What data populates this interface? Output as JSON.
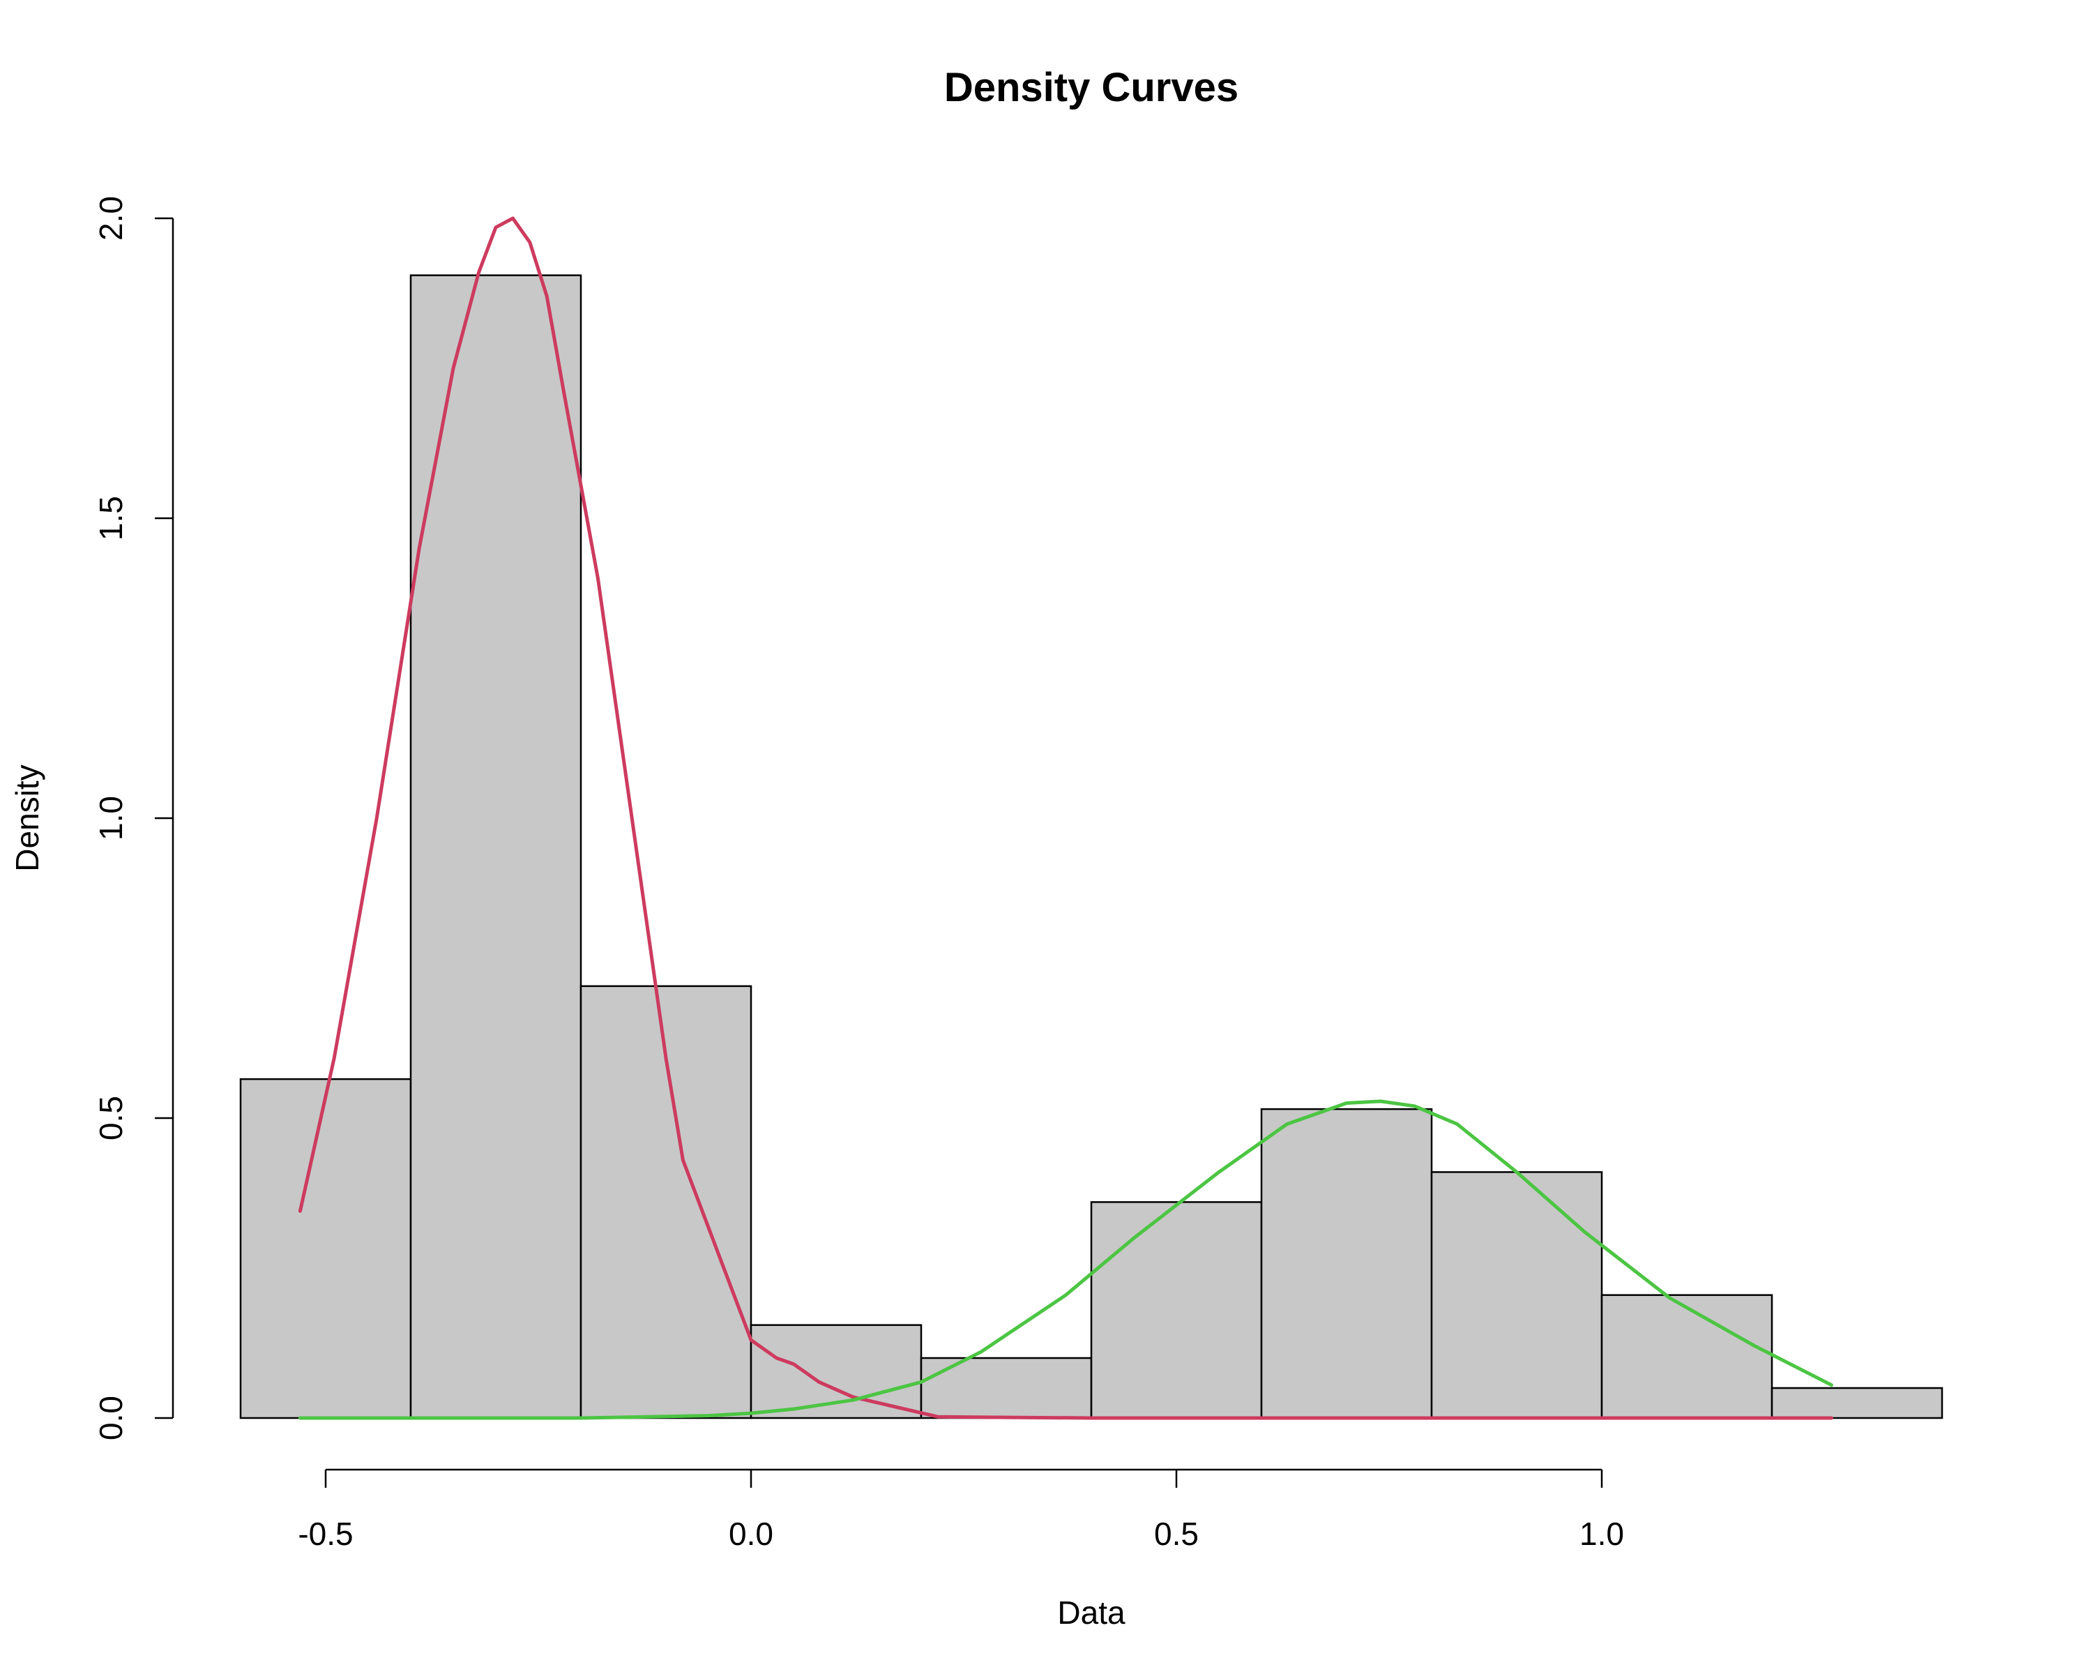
{
  "chart_data": {
    "type": "bar",
    "title": "Density Curves",
    "xlabel": "Data",
    "ylabel": "Density",
    "xlim": [
      -0.6,
      1.4
    ],
    "ylim": [
      0,
      2.0
    ],
    "x_ticks": [
      -0.5,
      0.0,
      0.5,
      1.0
    ],
    "x_tick_labels": [
      "-0.5",
      "0.0",
      "0.5",
      "1.0"
    ],
    "y_ticks": [
      0,
      0.5,
      1.0,
      1.5,
      2.0
    ],
    "y_tick_labels": [
      "0.0",
      "0.5",
      "1.0",
      "1.5",
      "2.0"
    ],
    "grid": false,
    "histogram": {
      "bins": [
        -0.6,
        -0.4,
        -0.2,
        0.0,
        0.2,
        0.4,
        0.6,
        0.8,
        1.0,
        1.2,
        1.4
      ],
      "density": [
        0.565,
        1.905,
        0.72,
        0.155,
        0.1,
        0.36,
        0.515,
        0.41,
        0.205,
        0.05
      ],
      "color": "#c8c8c8"
    },
    "series": [
      {
        "color": "#cd3b5e",
        "x": [
          -0.53,
          -0.49,
          -0.44,
          -0.39,
          -0.35,
          -0.32,
          -0.3,
          -0.28,
          -0.26,
          -0.24,
          -0.22,
          -0.18,
          -0.14,
          -0.1,
          -0.08,
          -0.04,
          0.0,
          0.03,
          0.05,
          0.08,
          0.12,
          0.22,
          0.4,
          1.27
        ],
        "y": [
          0.345,
          0.6,
          1.0,
          1.45,
          1.75,
          1.91,
          1.985,
          2.0,
          1.96,
          1.87,
          1.71,
          1.4,
          1.0,
          0.6,
          0.43,
          0.28,
          0.13,
          0.1,
          0.09,
          0.06,
          0.035,
          0.002,
          0.0,
          0.0
        ]
      },
      {
        "color": "#4cc543",
        "x": [
          -0.53,
          -0.2,
          -0.05,
          0.0,
          0.05,
          0.12,
          0.2,
          0.27,
          0.37,
          0.45,
          0.55,
          0.63,
          0.7,
          0.74,
          0.78,
          0.83,
          0.9,
          0.98,
          1.08,
          1.18,
          1.27
        ],
        "y": [
          0.0,
          0.0,
          0.004,
          0.008,
          0.015,
          0.03,
          0.06,
          0.11,
          0.205,
          0.3,
          0.41,
          0.49,
          0.525,
          0.528,
          0.52,
          0.49,
          0.41,
          0.31,
          0.2,
          0.12,
          0.055
        ]
      }
    ]
  }
}
